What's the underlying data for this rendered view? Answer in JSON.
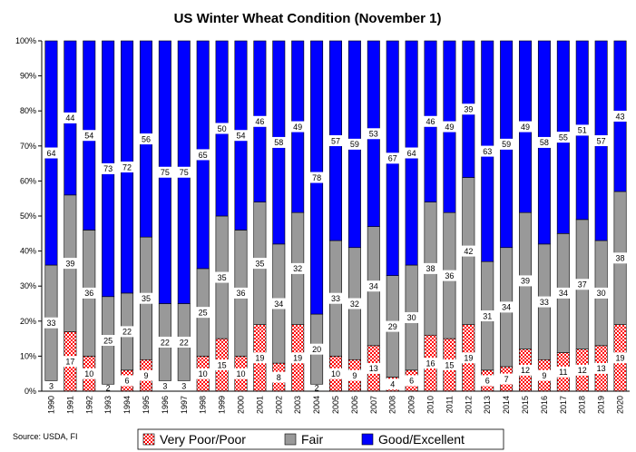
{
  "chart_data": {
    "type": "bar",
    "stacked": true,
    "title": "US Winter Wheat Condition (November 1)",
    "xlabel": "",
    "ylabel": "",
    "ylim": [
      0,
      100
    ],
    "y_ticks": [
      "0%",
      "10%",
      "20%",
      "30%",
      "40%",
      "50%",
      "60%",
      "70%",
      "80%",
      "90%",
      "100%"
    ],
    "grid": false,
    "legend_position": "bottom",
    "categories": [
      "1990",
      "1991",
      "1992",
      "1993",
      "1994",
      "1995",
      "1996",
      "1997",
      "1998",
      "1999",
      "2000",
      "2001",
      "2002",
      "2003",
      "2004",
      "2005",
      "2006",
      "2007",
      "2008",
      "2009",
      "2010",
      "2011",
      "2012",
      "2013",
      "2014",
      "2015",
      "2016",
      "2017",
      "2018",
      "2019",
      "2020"
    ],
    "series": [
      {
        "name": "Very Poor/Poor",
        "color": "#ff0000",
        "pattern": "red-checker",
        "values": [
          3,
          17,
          10,
          2,
          6,
          9,
          3,
          3,
          10,
          15,
          10,
          19,
          8,
          19,
          2,
          10,
          9,
          13,
          4,
          6,
          16,
          15,
          19,
          6,
          7,
          12,
          9,
          11,
          12,
          13,
          19
        ]
      },
      {
        "name": "Fair",
        "color": "#999999",
        "values": [
          33,
          39,
          36,
          25,
          22,
          35,
          22,
          22,
          25,
          35,
          36,
          35,
          34,
          32,
          20,
          33,
          32,
          34,
          29,
          30,
          38,
          36,
          42,
          31,
          34,
          39,
          33,
          34,
          37,
          30,
          38
        ]
      },
      {
        "name": "Good/Excellent",
        "color": "#0000ff",
        "values": [
          64,
          44,
          54,
          73,
          72,
          56,
          75,
          75,
          65,
          50,
          54,
          46,
          58,
          49,
          78,
          57,
          59,
          53,
          67,
          64,
          46,
          49,
          39,
          63,
          59,
          49,
          58,
          55,
          51,
          57,
          43
        ]
      }
    ]
  },
  "footer": {
    "source": "Source:  USDA, FI"
  }
}
